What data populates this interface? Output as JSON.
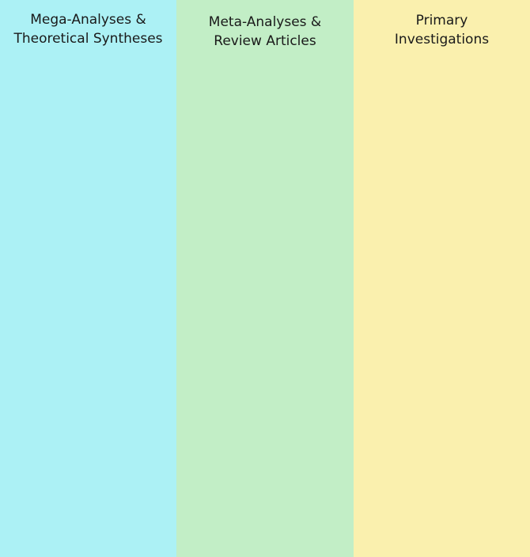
{
  "columns": [
    {
      "title_line1": "Mega-Analyses &",
      "title_line2": "Theoretical Syntheses",
      "color": "#acf1f5"
    },
    {
      "title_line1": "Meta-Analyses &",
      "title_line2": "Review Articles",
      "color": "#c2eec6"
    },
    {
      "title_line1": "Primary",
      "title_line2": "Investigations",
      "color": "#faf0ae"
    }
  ]
}
